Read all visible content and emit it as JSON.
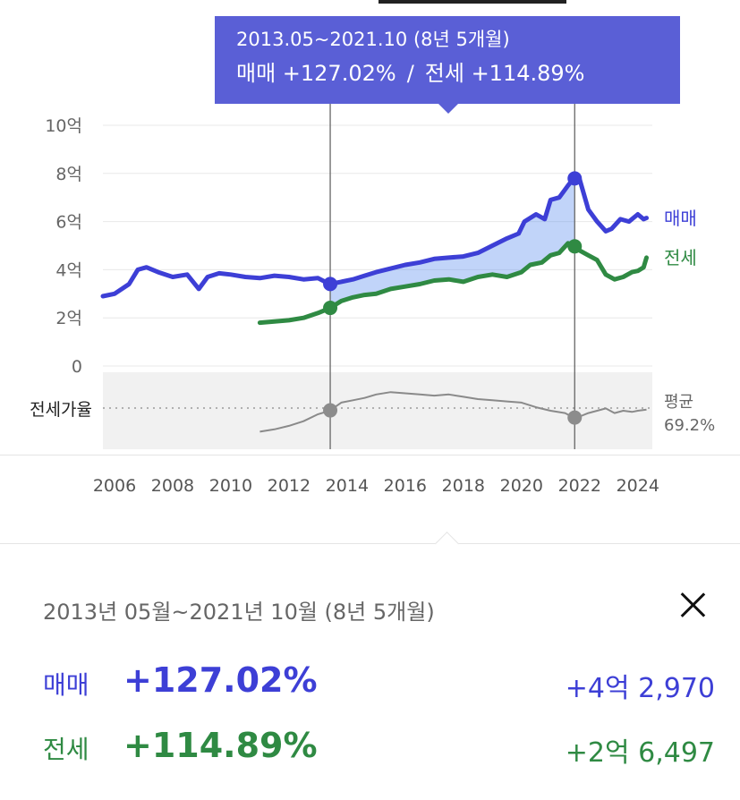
{
  "colors": {
    "sale": "#3d3fd6",
    "jeonse": "#2f8a43",
    "ratio": "#8a8a8a",
    "accent": "#5a5fd6"
  },
  "tooltip": {
    "period": "2013.05~2021.10 (8년 5개월)",
    "sale_text": "매매 +127.02%",
    "separator": "/",
    "jeonse_text": "전세 +114.89%"
  },
  "chart_data": {
    "type": "line",
    "x_unit": "year",
    "y_unit": "억",
    "ylim": [
      0,
      10
    ],
    "xlim": [
      2005.6,
      2024.5
    ],
    "y_ticks": [
      {
        "v": 10,
        "label": "10억"
      },
      {
        "v": 8,
        "label": "8억"
      },
      {
        "v": 6,
        "label": "6억"
      },
      {
        "v": 4,
        "label": "4억"
      },
      {
        "v": 2,
        "label": "2억"
      },
      {
        "v": 0,
        "label": "0"
      }
    ],
    "x_ticks": [
      {
        "v": 2006,
        "label": "2006"
      },
      {
        "v": 2008,
        "label": "2008"
      },
      {
        "v": 2010,
        "label": "2010"
      },
      {
        "v": 2012,
        "label": "2012"
      },
      {
        "v": 2014,
        "label": "2014"
      },
      {
        "v": 2016,
        "label": "2016"
      },
      {
        "v": 2018,
        "label": "2018"
      },
      {
        "v": 2020,
        "label": "2020"
      },
      {
        "v": 2022,
        "label": "2022"
      },
      {
        "v": 2024,
        "label": "2024"
      }
    ],
    "series": [
      {
        "name": "매매",
        "color": "#3d3fd6",
        "x": [
          2005.6,
          2006.0,
          2006.5,
          2006.8,
          2007.1,
          2007.5,
          2008.0,
          2008.5,
          2008.9,
          2009.2,
          2009.6,
          2010.0,
          2010.5,
          2011.0,
          2011.5,
          2012.0,
          2012.5,
          2013.0,
          2013.4,
          2013.8,
          2014.2,
          2014.6,
          2015.0,
          2015.5,
          2016.0,
          2016.5,
          2017.0,
          2017.5,
          2018.0,
          2018.5,
          2019.0,
          2019.5,
          2019.9,
          2020.1,
          2020.5,
          2020.8,
          2021.0,
          2021.3,
          2021.6,
          2021.8,
          2022.0,
          2022.3,
          2022.6,
          2022.9,
          2023.1,
          2023.4,
          2023.7,
          2024.0,
          2024.2,
          2024.3
        ],
        "y": [
          2.9,
          3.0,
          3.4,
          4.0,
          4.1,
          3.9,
          3.7,
          3.8,
          3.2,
          3.7,
          3.85,
          3.8,
          3.7,
          3.65,
          3.75,
          3.7,
          3.6,
          3.65,
          3.4,
          3.5,
          3.6,
          3.75,
          3.9,
          4.05,
          4.2,
          4.3,
          4.45,
          4.5,
          4.55,
          4.7,
          5.0,
          5.3,
          5.5,
          6.0,
          6.3,
          6.1,
          6.9,
          7.0,
          7.5,
          7.8,
          7.75,
          6.5,
          6.0,
          5.6,
          5.7,
          6.1,
          6.0,
          6.3,
          6.1,
          6.15
        ]
      },
      {
        "name": "전세",
        "color": "#2f8a43",
        "x": [
          2011.0,
          2011.5,
          2012.0,
          2012.5,
          2013.0,
          2013.4,
          2013.8,
          2014.2,
          2014.6,
          2015.0,
          2015.5,
          2016.0,
          2016.5,
          2017.0,
          2017.5,
          2018.0,
          2018.5,
          2019.0,
          2019.5,
          2020.0,
          2020.3,
          2020.7,
          2021.0,
          2021.3,
          2021.6,
          2021.8,
          2022.0,
          2022.3,
          2022.6,
          2022.9,
          2023.2,
          2023.5,
          2023.8,
          2024.0,
          2024.2,
          2024.3
        ],
        "y": [
          1.8,
          1.85,
          1.9,
          2.0,
          2.2,
          2.4,
          2.7,
          2.85,
          2.95,
          3.0,
          3.2,
          3.3,
          3.4,
          3.55,
          3.6,
          3.5,
          3.7,
          3.8,
          3.7,
          3.9,
          4.2,
          4.3,
          4.6,
          4.7,
          5.1,
          5.0,
          4.8,
          4.6,
          4.4,
          3.8,
          3.6,
          3.7,
          3.9,
          3.95,
          4.1,
          4.5
        ]
      }
    ],
    "jeonse_ratio": {
      "label": "전세가율",
      "avg_label": "평균",
      "avg_value": "69.2%",
      "ylim": [
        40,
        100
      ],
      "x": [
        2011.0,
        2011.5,
        2012.0,
        2012.5,
        2013.0,
        2013.4,
        2013.8,
        2014.2,
        2014.6,
        2015.0,
        2015.5,
        2016.0,
        2016.5,
        2017.0,
        2017.5,
        2018.0,
        2018.5,
        2019.0,
        2019.5,
        2020.0,
        2020.5,
        2021.0,
        2021.5,
        2021.8,
        2022.0,
        2022.3,
        2022.6,
        2022.9,
        2023.2,
        2023.5,
        2023.8,
        2024.0,
        2024.3
      ],
      "y": [
        52,
        54,
        57,
        61,
        67,
        70,
        77,
        79,
        81,
        84,
        86,
        85,
        84,
        83,
        84,
        82,
        80,
        79,
        78,
        77,
        73,
        70,
        68,
        64,
        65,
        68,
        70,
        72,
        68,
        70,
        69,
        70,
        71
      ]
    },
    "range": {
      "start": 2013.42,
      "end": 2021.83
    }
  },
  "summary": {
    "period": "2013년 05월~2021년 10월 (8년 5개월)",
    "sale": {
      "label": "매매",
      "pct": "+127.02%",
      "amount": "+4억 2,970"
    },
    "jeonse": {
      "label": "전세",
      "pct": "+114.89%",
      "amount": "+2억 6,497"
    }
  }
}
